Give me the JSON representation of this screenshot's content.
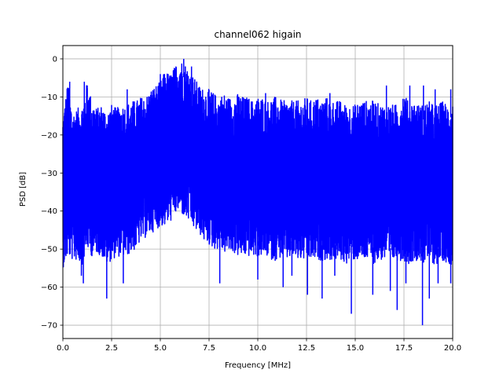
{
  "chart_data": {
    "type": "line",
    "title": "channel062 higain",
    "xlabel": "Frequency [MHz]",
    "ylabel": "PSD [dB]",
    "xlim": [
      0,
      20
    ],
    "ylim": [
      -73.5,
      3.5
    ],
    "xticks": [
      0.0,
      2.5,
      5.0,
      7.5,
      10.0,
      12.5,
      15.0,
      17.5,
      20.0
    ],
    "xtick_labels": [
      "0.0",
      "2.5",
      "5.0",
      "7.5",
      "10.0",
      "12.5",
      "15.0",
      "17.5",
      "20.0"
    ],
    "yticks": [
      0,
      -10,
      -20,
      -30,
      -40,
      -50,
      -60,
      -70
    ],
    "ytick_labels": [
      "0",
      "−10",
      "−20",
      "−30",
      "−40",
      "−50",
      "−60",
      "−70"
    ],
    "grid": true,
    "series_color": "#0000ff",
    "series": [
      {
        "x": [
          0.0,
          0.25,
          0.5,
          0.75,
          1.0,
          1.25,
          1.5,
          1.75,
          2.0,
          2.25,
          2.5,
          2.75,
          3.0,
          3.25,
          3.5,
          3.75,
          4.0,
          4.25,
          4.5,
          4.75,
          5.0,
          5.25,
          5.5,
          5.75,
          6.0,
          6.25,
          6.5,
          6.75,
          7.0,
          7.25,
          7.5,
          7.75,
          8.0,
          8.25,
          8.5,
          8.75,
          9.0,
          9.25,
          9.5,
          9.75,
          10.0,
          10.25,
          10.5,
          10.75,
          11.0,
          11.25,
          11.5,
          11.75,
          12.0,
          12.25,
          12.5,
          12.75,
          13.0,
          13.25,
          13.5,
          13.75,
          14.0,
          14.25,
          14.5,
          14.75,
          15.0,
          15.25,
          15.5,
          15.75,
          16.0,
          16.25,
          16.5,
          16.75,
          17.0,
          17.25,
          17.5,
          17.75,
          18.0,
          18.25,
          18.5,
          18.75,
          19.0,
          19.25,
          19.5,
          19.75,
          20.0
        ],
        "upper": [
          -15,
          -6,
          -14,
          -13,
          -12,
          -6,
          -11,
          -13,
          -12,
          -14,
          -12,
          -13,
          -12,
          -12,
          -11,
          -11,
          -10,
          -10,
          -8,
          -7,
          -6,
          -3,
          -4,
          -2,
          0,
          -1,
          -3,
          -5,
          -7,
          -8,
          -8,
          -9,
          -10,
          -9,
          -10,
          -10,
          -9,
          -10,
          -10,
          -11,
          -10,
          -10,
          -11,
          -10,
          -10,
          -11,
          -11,
          -11,
          -11,
          -11,
          -10,
          -11,
          -10,
          -11,
          -10,
          -11,
          -11,
          -11,
          -12,
          -12,
          -12,
          -11,
          -11,
          -11,
          -11,
          -12,
          -12,
          -12,
          -12,
          -12,
          -8,
          -12,
          -11,
          -12,
          -12,
          -11,
          -12,
          -12,
          -11,
          -12,
          -11
        ],
        "lower": [
          -55,
          -52,
          -53,
          -53,
          -54,
          -50,
          -52,
          -51,
          -52,
          -54,
          -53,
          -52,
          -52,
          -52,
          -51,
          -50,
          -48,
          -47,
          -46,
          -45,
          -44,
          -44,
          -43,
          -41,
          -40,
          -42,
          -43,
          -45,
          -46,
          -48,
          -49,
          -50,
          -50,
          -51,
          -51,
          -51,
          -52,
          -52,
          -52,
          -52,
          -52,
          -52,
          -52,
          -53,
          -53,
          -52,
          -53,
          -52,
          -53,
          -53,
          -53,
          -53,
          -53,
          -53,
          -53,
          -53,
          -53,
          -53,
          -54,
          -53,
          -53,
          -53,
          -53,
          -53,
          -54,
          -53,
          -53,
          -54,
          -53,
          -53,
          -53,
          -54,
          -53,
          -53,
          -54,
          -53,
          -54,
          -54,
          -53,
          -54,
          -54
        ],
        "spikes_up": [
          [
            0.35,
            -6
          ],
          [
            1.1,
            -6
          ],
          [
            1.25,
            -7
          ],
          [
            3.3,
            -8
          ],
          [
            5.0,
            -4
          ],
          [
            5.8,
            -2
          ],
          [
            6.2,
            0
          ],
          [
            6.6,
            -2
          ],
          [
            10.4,
            -9
          ],
          [
            13.7,
            -9
          ],
          [
            16.6,
            -7
          ],
          [
            17.8,
            -7
          ],
          [
            18.5,
            -7
          ],
          [
            19.1,
            -8
          ],
          [
            19.9,
            -8
          ]
        ],
        "spikes_down": [
          [
            0.95,
            -57
          ],
          [
            1.05,
            -59
          ],
          [
            2.25,
            -63
          ],
          [
            3.1,
            -59
          ],
          [
            8.05,
            -59
          ],
          [
            10.0,
            -58
          ],
          [
            11.3,
            -60
          ],
          [
            11.75,
            -57
          ],
          [
            12.55,
            -62
          ],
          [
            13.3,
            -63
          ],
          [
            13.95,
            -57
          ],
          [
            14.8,
            -67
          ],
          [
            15.9,
            -62
          ],
          [
            16.8,
            -61
          ],
          [
            17.15,
            -66
          ],
          [
            17.6,
            -59
          ],
          [
            18.45,
            -70
          ],
          [
            18.8,
            -63
          ],
          [
            19.25,
            -59
          ],
          [
            19.9,
            -59
          ]
        ]
      }
    ]
  }
}
